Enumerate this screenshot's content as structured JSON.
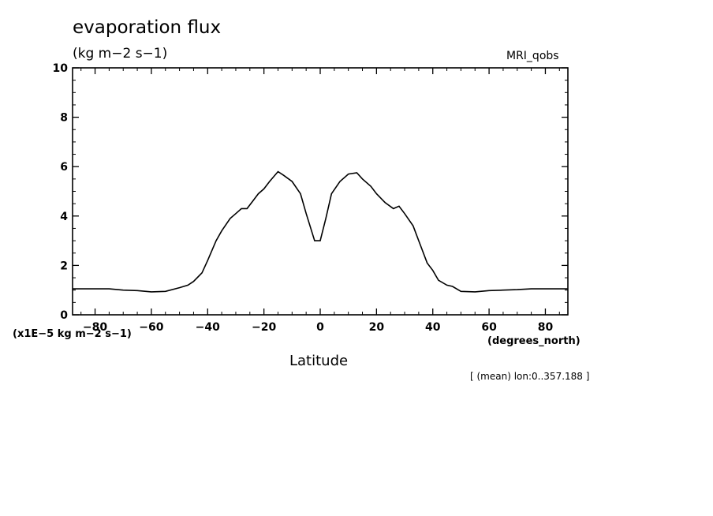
{
  "chart_data": {
    "type": "line",
    "title": "evaporation flux",
    "units": "(kg m−2 s−1)",
    "model": "MRI_qobs",
    "scale_label": "(x1E−5 kg m−2 s−1)",
    "xlabel": "Latitude",
    "x_units": "(degrees_north)",
    "footer": "[ (mean) lon:0..357.188 ]",
    "xlim": [
      -88,
      88
    ],
    "ylim": [
      0,
      10
    ],
    "x_ticks": [
      -80,
      -60,
      -40,
      -20,
      0,
      20,
      40,
      60,
      80
    ],
    "x_tick_labels": [
      "−80",
      "−60",
      "−40",
      "−20",
      "0",
      "20",
      "40",
      "60",
      "80"
    ],
    "y_ticks": [
      0,
      2,
      4,
      6,
      8,
      10
    ],
    "y_tick_labels": [
      "0",
      "2",
      "4",
      "6",
      "8",
      "10"
    ],
    "grid": false,
    "series": [
      {
        "x": [
          -88,
          -75,
          -70,
          -65,
          -60,
          -55,
          -50,
          -47,
          -45,
          -42,
          -40,
          -37,
          -35,
          -32,
          -30,
          -28,
          -26,
          -24,
          -22,
          -20,
          -18,
          -15,
          -13,
          -10,
          -7,
          -5,
          -2,
          0,
          2,
          4,
          7,
          10,
          13,
          15,
          18,
          20,
          23,
          26,
          28,
          30,
          33,
          35,
          38,
          40,
          42,
          45,
          47,
          50,
          55,
          60,
          65,
          70,
          75,
          80,
          88
        ],
        "y": [
          1.05,
          1.05,
          1.0,
          0.98,
          0.93,
          0.95,
          1.1,
          1.2,
          1.35,
          1.7,
          2.2,
          3.0,
          3.4,
          3.9,
          4.1,
          4.3,
          4.3,
          4.6,
          4.9,
          5.1,
          5.4,
          5.8,
          5.65,
          5.4,
          4.9,
          4.1,
          3.0,
          3.0,
          3.9,
          4.9,
          5.4,
          5.7,
          5.75,
          5.5,
          5.2,
          4.9,
          4.55,
          4.3,
          4.4,
          4.1,
          3.6,
          3.0,
          2.1,
          1.8,
          1.4,
          1.2,
          1.15,
          0.95,
          0.93,
          0.98,
          1.0,
          1.02,
          1.05,
          1.05,
          1.05
        ]
      }
    ]
  }
}
